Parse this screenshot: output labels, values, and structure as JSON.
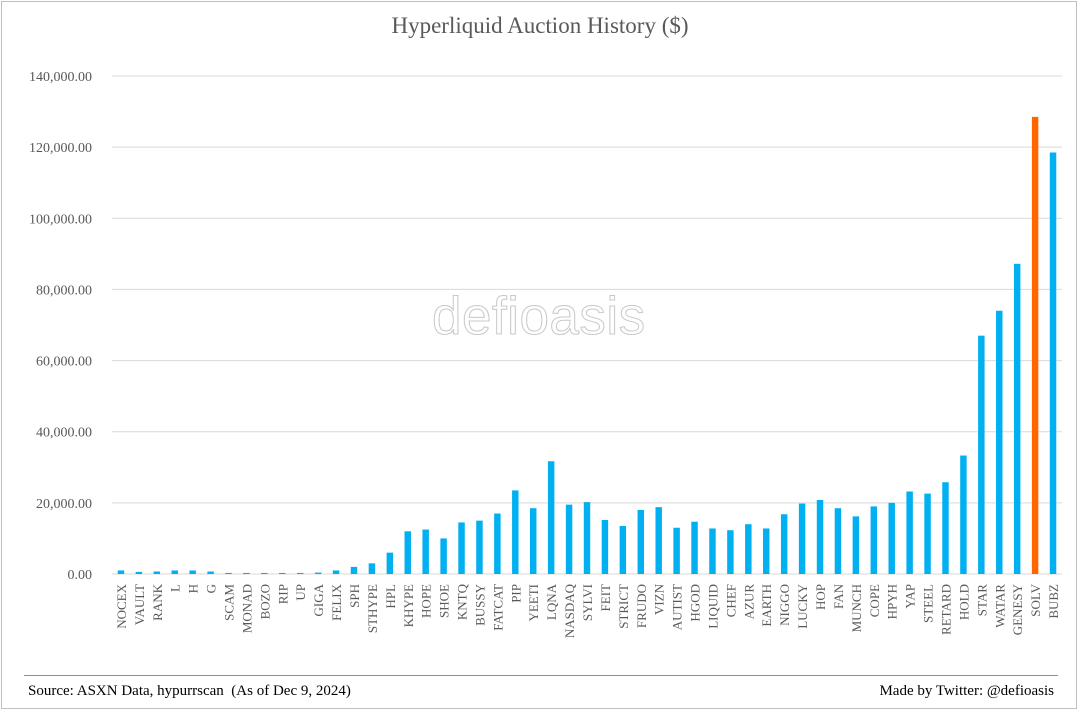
{
  "chart_data": {
    "type": "bar",
    "title": "Hyperliquid Auction History ($)",
    "categories": [
      "NOCEX",
      "VAULT",
      "RANK",
      "L",
      "H",
      "G",
      "SCAM",
      "MONAD",
      "BOZO",
      "RIP",
      "UP",
      "GIGA",
      "FELIX",
      "SPH",
      "STHYPE",
      "HPL",
      "KHYPE",
      "HOPE",
      "SHOE",
      "KNTQ",
      "BUSSY",
      "FATCAT",
      "PIP",
      "YEETI",
      "LQNA",
      "NASDAQ",
      "SYLVI",
      "FEIT",
      "STRICT",
      "FRUDO",
      "VIZN",
      "AUTIST",
      "HGOD",
      "LIQUID",
      "CHEF",
      "AZUR",
      "EARTH",
      "NIGGO",
      "LUCKY",
      "HOP",
      "FAN",
      "MUNCH",
      "COPE",
      "HPYH",
      "YAP",
      "STEEL",
      "RETARD",
      "HOLD",
      "STAR",
      "WATAR",
      "GENESY",
      "SOLV",
      "BUBZ"
    ],
    "values": [
      1000,
      600,
      700,
      1000,
      1000,
      700,
      300,
      300,
      300,
      300,
      300,
      400,
      1000,
      2000,
      3000,
      6000,
      12000,
      12500,
      10000,
      14500,
      15000,
      17000,
      23500,
      18500,
      31700,
      19500,
      20200,
      15200,
      13500,
      18000,
      18800,
      13000,
      14700,
      12800,
      12300,
      14000,
      12800,
      16800,
      19800,
      20800,
      18500,
      16200,
      19000,
      20000,
      23200,
      22600,
      25800,
      33300,
      67000,
      74000,
      87200,
      128500,
      118500
    ],
    "highlight_index": 51,
    "colors": {
      "bar": "#00b0f0",
      "highlight": "#ff6600",
      "grid": "#d9d9d9"
    },
    "y_tick_labels": [
      "0.00",
      "20,000.00",
      "40,000.00",
      "60,000.00",
      "80,000.00",
      "100,000.00",
      "120,000.00",
      "140,000.00"
    ],
    "ylim": [
      0,
      140000
    ],
    "grid": true,
    "legend": "none"
  },
  "watermark": "defioasis",
  "footer": {
    "source": "Source: ASXN Data, hypurrscan  (As of Dec 9, 2024)",
    "credit": "Made by Twitter: @defioasis"
  }
}
